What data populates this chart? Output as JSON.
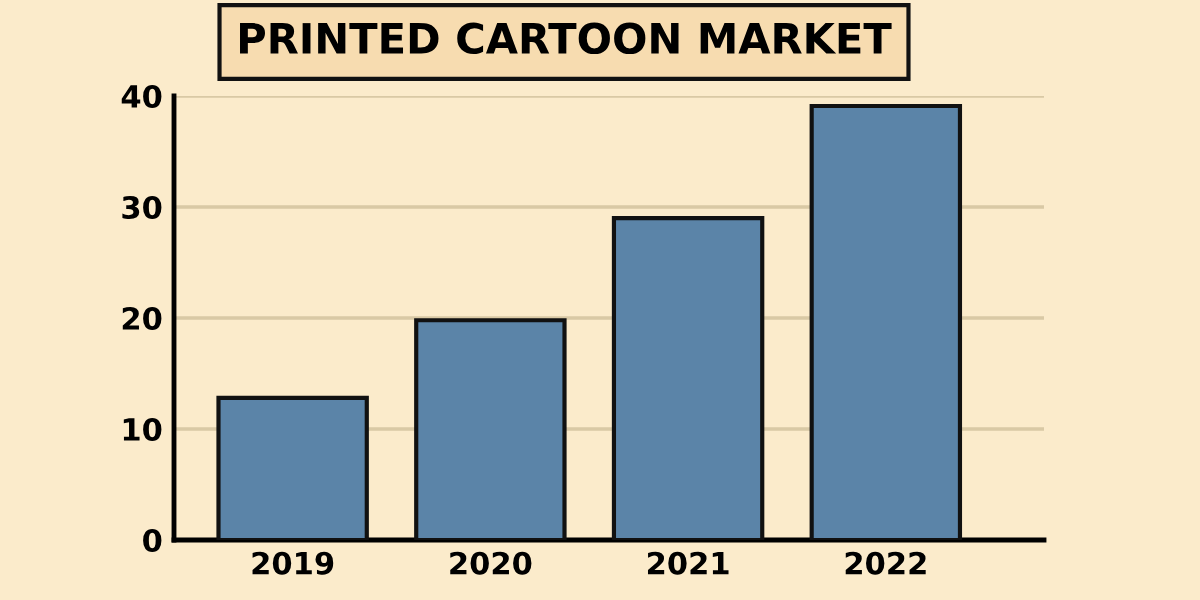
{
  "chart_data": {
    "type": "bar",
    "title": "PRINTED CARTOON MARKET",
    "categories": [
      "2019",
      "2020",
      "2021",
      "2022"
    ],
    "values": [
      12.8,
      19.8,
      29,
      39.1
    ],
    "color": "#5b84a8",
    "ylim": [
      0,
      40
    ],
    "yticks": [
      0,
      10,
      20,
      30,
      40
    ],
    "grid": "y"
  }
}
